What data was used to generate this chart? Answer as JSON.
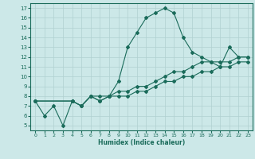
{
  "xlabel": "Humidex (Indice chaleur)",
  "xlim": [
    -0.5,
    23.5
  ],
  "ylim": [
    4.5,
    17.5
  ],
  "xticks": [
    0,
    1,
    2,
    3,
    4,
    5,
    6,
    7,
    8,
    9,
    10,
    11,
    12,
    13,
    14,
    15,
    16,
    17,
    18,
    19,
    20,
    21,
    22,
    23
  ],
  "yticks": [
    5,
    6,
    7,
    8,
    9,
    10,
    11,
    12,
    13,
    14,
    15,
    16,
    17
  ],
  "bg_color": "#cce8e8",
  "line_color": "#1a6b5a",
  "grid_color": "#b0d0d0",
  "curve1_x": [
    0,
    1,
    2,
    3,
    4,
    5,
    6,
    7,
    8,
    9,
    10,
    11,
    12,
    13,
    14,
    15,
    16,
    17,
    18,
    19,
    20,
    21,
    22,
    23
  ],
  "curve1_y": [
    7.5,
    6.0,
    7.0,
    5.0,
    7.5,
    7.0,
    8.0,
    8.0,
    8.0,
    9.5,
    13.0,
    14.5,
    16.0,
    16.5,
    17.0,
    16.5,
    14.0,
    12.5,
    12.0,
    11.5,
    11.0,
    13.0,
    12.0,
    12.0
  ],
  "curve2_x": [
    0,
    4,
    5,
    6,
    7,
    8,
    9,
    10,
    11,
    12,
    13,
    14,
    15,
    16,
    17,
    18,
    19,
    20,
    21,
    22,
    23
  ],
  "curve2_y": [
    7.5,
    7.5,
    7.0,
    8.0,
    7.5,
    8.0,
    8.5,
    8.5,
    9.0,
    9.0,
    9.5,
    10.0,
    10.5,
    10.5,
    11.0,
    11.5,
    11.5,
    11.5,
    11.5,
    12.0,
    12.0
  ],
  "curve3_x": [
    0,
    4,
    5,
    6,
    7,
    8,
    9,
    10,
    11,
    12,
    13,
    14,
    15,
    16,
    17,
    18,
    19,
    20,
    21,
    22,
    23
  ],
  "curve3_y": [
    7.5,
    7.5,
    7.0,
    8.0,
    7.5,
    8.0,
    8.0,
    8.0,
    8.5,
    8.5,
    9.0,
    9.5,
    9.5,
    10.0,
    10.0,
    10.5,
    10.5,
    11.0,
    11.0,
    11.5,
    11.5
  ],
  "marker_size": 2.0,
  "line_width": 0.8,
  "xlabel_fontsize": 5.5,
  "tick_fontsize_x": 4.5,
  "tick_fontsize_y": 5.0
}
